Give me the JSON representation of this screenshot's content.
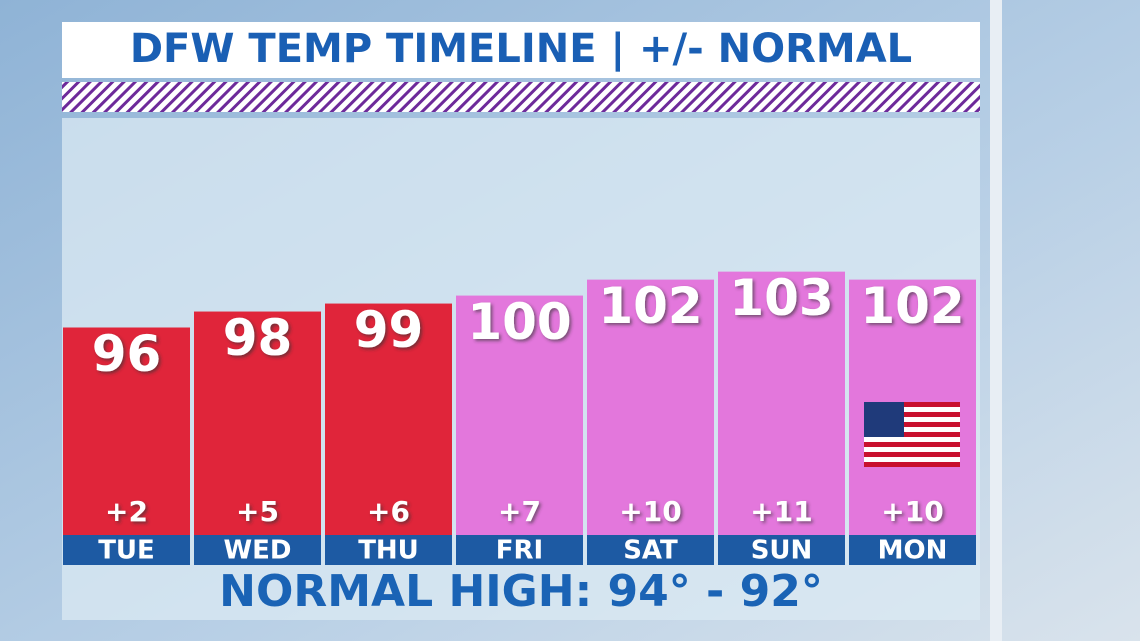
{
  "chart_data": {
    "type": "bar",
    "title": "DFW TEMP TIMELINE | +/- NORMAL",
    "categories": [
      "TUE",
      "WED",
      "THU",
      "FRI",
      "SAT",
      "SUN",
      "MON"
    ],
    "values": [
      96,
      98,
      99,
      100,
      102,
      103,
      102
    ],
    "colors": [
      "#e0253a",
      "#e0253a",
      "#e0253a",
      "#e377dc",
      "#e377dc",
      "#e377dc",
      "#e377dc"
    ],
    "departures": {
      "values": [
        2,
        5,
        6,
        7,
        10,
        11,
        10
      ],
      "value_labels": [
        "+2",
        "+5",
        "+6",
        "+7",
        "+10",
        "+11",
        "+10"
      ]
    },
    "ylim": [
      70,
      122
    ],
    "footer": "NORMAL HIGH: 94° - 92°"
  }
}
